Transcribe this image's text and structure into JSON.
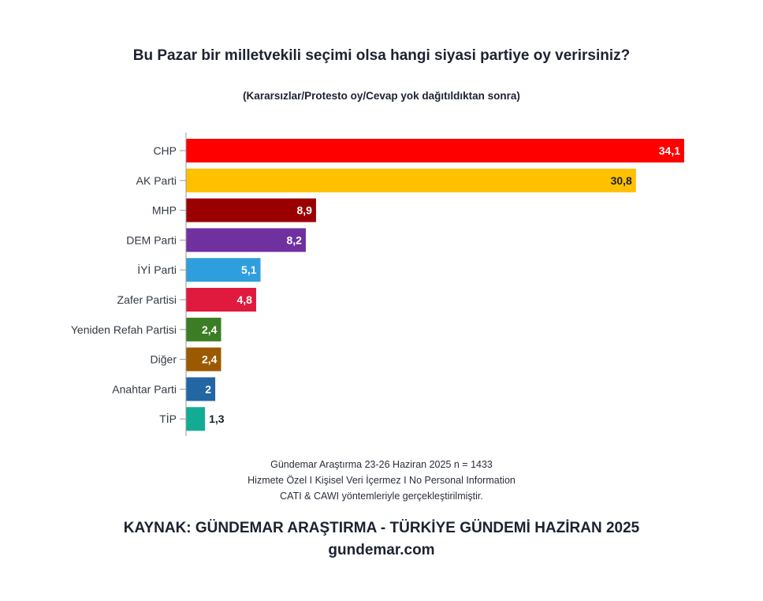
{
  "title": "Bu Pazar bir milletvekili seçimi olsa hangi siyasi partiye oy verirsiniz?",
  "subtitle": "(Kararsızlar/Protesto oy/Cevap yok dağıtıldıktan sonra)",
  "chart_data": {
    "type": "bar",
    "orientation": "horizontal",
    "categories": [
      "CHP",
      "AK Parti",
      "MHP",
      "DEM Parti",
      "İYİ Parti",
      "Zafer Partisi",
      "Yeniden Refah Partisi",
      "Diğer",
      "Anahtar Parti",
      "TİP"
    ],
    "values": [
      34.1,
      30.8,
      8.9,
      8.2,
      5.1,
      4.8,
      2.4,
      2.4,
      2,
      1.3
    ],
    "value_labels": [
      "34,1",
      "30,8",
      "8,9",
      "8,2",
      "5,1",
      "4,8",
      "2,4",
      "2,4",
      "2",
      "1,3"
    ],
    "colors": [
      "#ff0000",
      "#ffc000",
      "#9b0000",
      "#7030a0",
      "#2e9fdc",
      "#e0193f",
      "#3a7d24",
      "#9c5a00",
      "#2266a4",
      "#12ac95"
    ],
    "label_colors": [
      "#ffffff",
      "#1c2230",
      "#ffffff",
      "#ffffff",
      "#ffffff",
      "#ffffff",
      "#ffffff",
      "#ffffff",
      "#ffffff",
      "#1c2230"
    ],
    "xlim": [
      0,
      34.1
    ],
    "grid": false,
    "legend": "none"
  },
  "footer": {
    "line1": "Gündemar Araştırma 23-26 Haziran 2025 n = 1433",
    "line2": "Hizmete Özel I Kişisel Veri İçermez I No Personal Information",
    "line3": "CATI & CAWI yöntemleriyle gerçekleştirilmiştir.",
    "source": "KAYNAK: GÜNDEMAR ARAŞTIRMA - TÜRKİYE GÜNDEMİ HAZİRAN 2025",
    "website": "gundemar.com"
  }
}
